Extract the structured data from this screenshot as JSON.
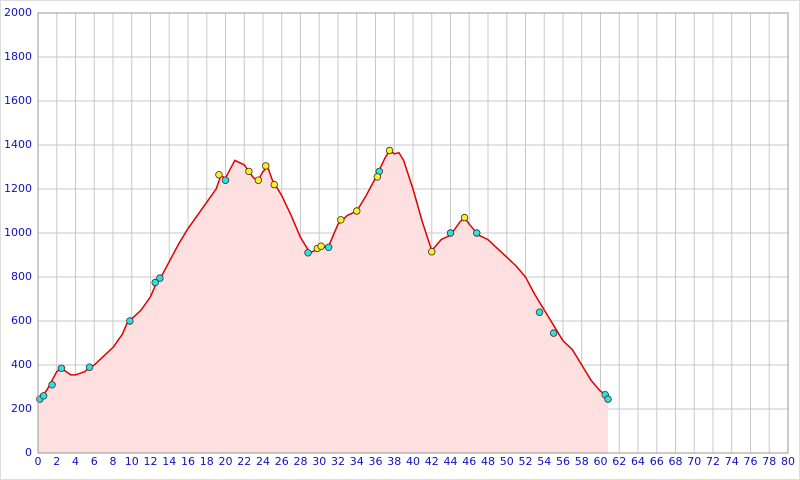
{
  "chart_data": {
    "type": "line",
    "grid": true,
    "fill": true,
    "xlim": [
      0,
      80
    ],
    "ylim": [
      0,
      2000
    ],
    "xticks": [
      0,
      2,
      4,
      6,
      8,
      10,
      12,
      14,
      16,
      18,
      20,
      22,
      24,
      26,
      28,
      30,
      32,
      34,
      36,
      38,
      40,
      42,
      44,
      46,
      48,
      50,
      52,
      54,
      56,
      58,
      60,
      62,
      64,
      66,
      68,
      70,
      72,
      74,
      76,
      78,
      80
    ],
    "yticks": [
      0,
      200,
      400,
      600,
      800,
      1000,
      1200,
      1400,
      1600,
      1800,
      2000
    ],
    "series": [
      {
        "color": "#e00000",
        "fill_color": "#ffe0e0",
        "markers": false,
        "x": [
          0,
          0.5,
          1,
          2,
          2.5,
          3,
          3.5,
          4,
          5,
          5.5,
          6,
          7,
          8,
          9,
          9.5,
          10,
          11,
          12,
          12.5,
          13,
          14,
          15,
          16,
          17,
          18,
          19,
          19.5,
          20,
          20.5,
          21,
          22,
          23,
          23.5,
          24,
          24.5,
          25,
          26,
          27,
          28,
          29,
          30,
          31,
          32,
          33,
          34,
          35,
          36,
          37,
          37.5,
          38,
          38.5,
          39,
          40,
          41,
          42,
          43,
          44,
          45,
          45.5,
          46,
          47,
          48,
          49,
          50,
          51,
          52,
          53,
          54,
          55,
          56,
          57,
          58,
          59,
          60,
          60.5,
          60.8
        ],
        "values": [
          240,
          260,
          290,
          370,
          385,
          370,
          355,
          355,
          370,
          390,
          400,
          440,
          480,
          540,
          590,
          610,
          650,
          710,
          760,
          790,
          870,
          950,
          1020,
          1080,
          1140,
          1200,
          1260,
          1250,
          1290,
          1330,
          1310,
          1250,
          1240,
          1280,
          1300,
          1240,
          1170,
          1080,
          980,
          910,
          930,
          940,
          1040,
          1080,
          1100,
          1170,
          1250,
          1340,
          1375,
          1360,
          1365,
          1330,
          1200,
          1050,
          920,
          970,
          990,
          1050,
          1070,
          1040,
          990,
          970,
          930,
          890,
          850,
          800,
          720,
          650,
          580,
          510,
          470,
          400,
          330,
          280,
          270,
          250
        ]
      },
      {
        "color": "#30e0e0",
        "markers": true,
        "x": [
          0.2,
          0.6,
          1.5,
          2.5,
          5.5,
          9.8,
          12.5,
          13,
          20,
          28.8,
          31,
          36.4,
          44,
          46.8,
          53.5,
          55,
          60.5,
          60.8
        ],
        "values": [
          245,
          260,
          310,
          385,
          390,
          600,
          775,
          795,
          1240,
          910,
          935,
          1280,
          1000,
          1000,
          640,
          545,
          265,
          245
        ]
      },
      {
        "color": "#ffee22",
        "markers": true,
        "x": [
          19.3,
          22.5,
          23.5,
          24.3,
          25.2,
          29.8,
          30.2,
          32.3,
          34,
          36.2,
          37.5,
          42,
          45.5
        ],
        "values": [
          1265,
          1280,
          1240,
          1305,
          1220,
          930,
          940,
          1060,
          1100,
          1255,
          1375,
          915,
          1070
        ]
      }
    ]
  }
}
